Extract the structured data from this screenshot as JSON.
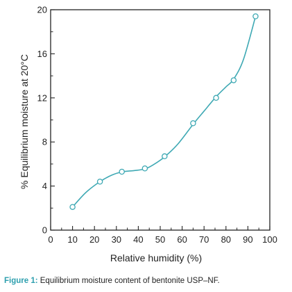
{
  "chart_data": {
    "type": "scatter",
    "xlabel": "Relative humidity (%)",
    "ylabel": "% Equilibrium moisture at 20°C",
    "xlim": [
      0,
      100
    ],
    "ylim": [
      0,
      20
    ],
    "x_ticks": [
      0,
      10,
      20,
      30,
      40,
      50,
      60,
      70,
      80,
      90,
      100
    ],
    "x_tick_labels": [
      "0",
      "10",
      "20",
      "30",
      "40",
      "50",
      "60",
      "70",
      "80",
      "90",
      "100"
    ],
    "y_ticks": [
      0,
      4,
      8,
      12,
      16,
      20
    ],
    "y_tick_labels": [
      "0",
      "4",
      "8",
      "12",
      "16",
      "20"
    ],
    "grid": false,
    "points": [
      {
        "x": 10,
        "y": 2.1
      },
      {
        "x": 22.5,
        "y": 4.4
      },
      {
        "x": 32.5,
        "y": 5.3
      },
      {
        "x": 43,
        "y": 5.6
      },
      {
        "x": 52,
        "y": 6.7
      },
      {
        "x": 65,
        "y": 9.7
      },
      {
        "x": 75.5,
        "y": 12.0
      },
      {
        "x": 83.5,
        "y": 13.6
      },
      {
        "x": 93.5,
        "y": 19.4
      }
    ],
    "fit_curve": [
      [
        10,
        2.1
      ],
      [
        16,
        3.4
      ],
      [
        22.5,
        4.4
      ],
      [
        28,
        5.0
      ],
      [
        33,
        5.3
      ],
      [
        38,
        5.4
      ],
      [
        43,
        5.55
      ],
      [
        47,
        5.95
      ],
      [
        52,
        6.65
      ],
      [
        58,
        7.8
      ],
      [
        65,
        9.6
      ],
      [
        70,
        10.8
      ],
      [
        75.5,
        12.1
      ],
      [
        80,
        13.0
      ],
      [
        83.5,
        13.7
      ],
      [
        88,
        15.5
      ],
      [
        93.5,
        19.4
      ]
    ],
    "colors": {
      "line": "#3fa9b4",
      "marker": "#3fa9b4",
      "axis": "#222222"
    }
  },
  "caption": {
    "label": "Figure 1:",
    "text": "Equilibrium moisture content of bentonite USP–NF.",
    "label_color": "#2d9fae"
  }
}
